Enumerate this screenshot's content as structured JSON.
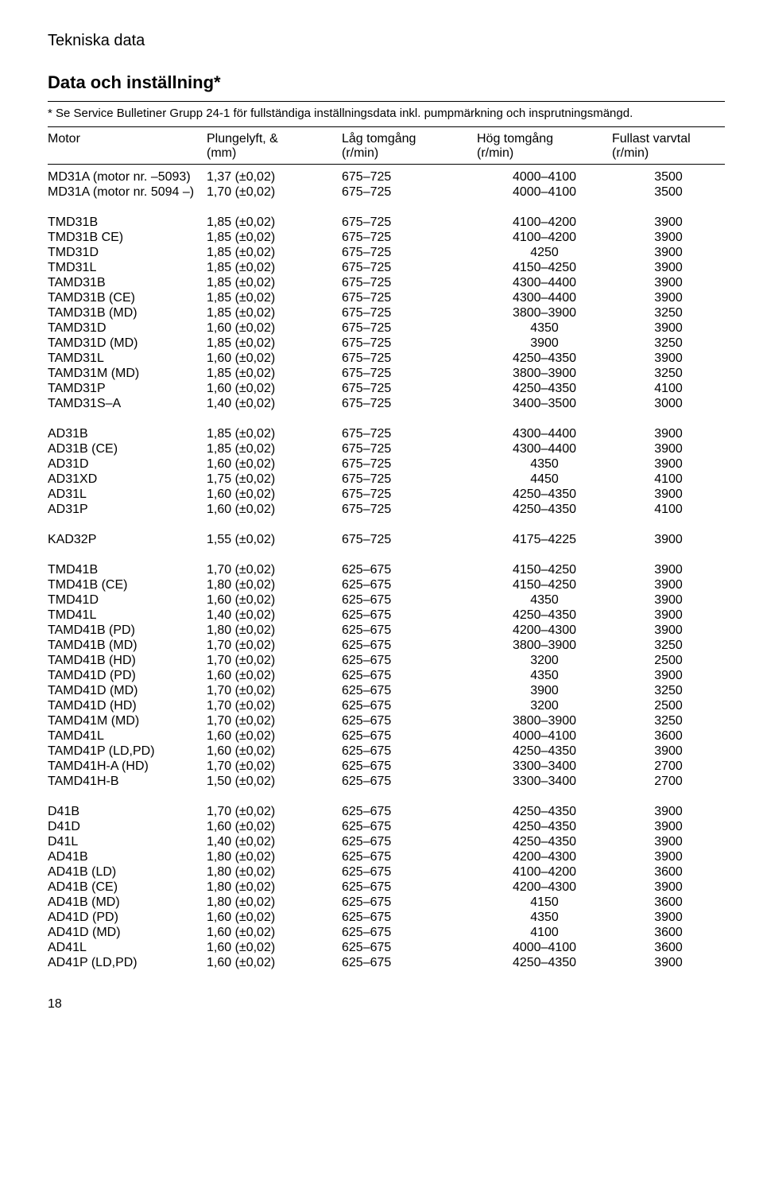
{
  "header": "Tekniska data",
  "title": "Data och inställning*",
  "footnote": "* Se Service Bulletiner Grupp 24-1 för fullständiga inställningsdata inkl. pumpmärkning och insprutningsmängd.",
  "columns": {
    "motor": "Motor",
    "plunge": "Plungelyft, &",
    "plunge_unit": "(mm)",
    "low": "Låg tomgång",
    "low_unit": "(r/min)",
    "high": "Hög tomgång",
    "high_unit": "(r/min)",
    "full": "Fullast varvtal",
    "full_unit": "(r/min)"
  },
  "groups": [
    [
      [
        "MD31A (motor nr. –5093)",
        "1,37 (±0,02)",
        "675–725",
        "4000–4100",
        "3500"
      ],
      [
        "MD31A (motor nr. 5094 –)",
        "1,70 (±0,02)",
        "675–725",
        "4000–4100",
        "3500"
      ]
    ],
    [
      [
        "TMD31B",
        "1,85 (±0,02)",
        "675–725",
        "4100–4200",
        "3900"
      ],
      [
        "TMD31B CE)",
        "1,85 (±0,02)",
        "675–725",
        "4100–4200",
        "3900"
      ],
      [
        "TMD31D",
        "1,85 (±0,02)",
        "675–725",
        "4250",
        "3900"
      ],
      [
        "TMD31L",
        "1,85 (±0,02)",
        "675–725",
        "4150–4250",
        "3900"
      ],
      [
        "TAMD31B",
        "1,85 (±0,02)",
        "675–725",
        "4300–4400",
        "3900"
      ],
      [
        "TAMD31B (CE)",
        "1,85 (±0,02)",
        "675–725",
        "4300–4400",
        "3900"
      ],
      [
        "TAMD31B (MD)",
        "1,85 (±0,02)",
        "675–725",
        "3800–3900",
        "3250"
      ],
      [
        "TAMD31D",
        "1,60 (±0,02)",
        "675–725",
        "4350",
        "3900"
      ],
      [
        "TAMD31D (MD)",
        "1,85 (±0,02)",
        "675–725",
        "3900",
        "3250"
      ],
      [
        "TAMD31L",
        "1,60 (±0,02)",
        "675–725",
        "4250–4350",
        "3900"
      ],
      [
        "TAMD31M (MD)",
        "1,85 (±0,02)",
        "675–725",
        "3800–3900",
        "3250"
      ],
      [
        "TAMD31P",
        "1,60 (±0,02)",
        "675–725",
        "4250–4350",
        "4100"
      ],
      [
        "TAMD31S–A",
        "1,40 (±0,02)",
        "675–725",
        "3400–3500",
        "3000"
      ]
    ],
    [
      [
        "AD31B",
        "1,85 (±0,02)",
        "675–725",
        "4300–4400",
        "3900"
      ],
      [
        "AD31B (CE)",
        "1,85 (±0,02)",
        "675–725",
        "4300–4400",
        "3900"
      ],
      [
        "AD31D",
        "1,60 (±0,02)",
        "675–725",
        "4350",
        "3900"
      ],
      [
        "AD31XD",
        "1,75 (±0,02)",
        "675–725",
        "4450",
        "4100"
      ],
      [
        "AD31L",
        "1,60 (±0,02)",
        "675–725",
        "4250–4350",
        "3900"
      ],
      [
        "AD31P",
        "1,60 (±0,02)",
        "675–725",
        "4250–4350",
        "4100"
      ]
    ],
    [
      [
        "KAD32P",
        "1,55 (±0,02)",
        "675–725",
        "4175–4225",
        "3900"
      ]
    ],
    [
      [
        "TMD41B",
        "1,70 (±0,02)",
        "625–675",
        "4150–4250",
        "3900"
      ],
      [
        "TMD41B (CE)",
        "1,80 (±0,02)",
        "625–675",
        "4150–4250",
        "3900"
      ],
      [
        "TMD41D",
        "1,60 (±0,02)",
        "625–675",
        "4350",
        "3900"
      ],
      [
        "TMD41L",
        "1,40 (±0,02)",
        "625–675",
        "4250–4350",
        "3900"
      ],
      [
        "TAMD41B (PD)",
        "1,80 (±0,02)",
        "625–675",
        "4200–4300",
        "3900"
      ],
      [
        "TAMD41B (MD)",
        "1,70 (±0,02)",
        "625–675",
        "3800–3900",
        "3250"
      ],
      [
        "TAMD41B (HD)",
        "1,70 (±0,02)",
        "625–675",
        "3200",
        "2500"
      ],
      [
        "TAMD41D (PD)",
        "1,60 (±0,02)",
        "625–675",
        "4350",
        "3900"
      ],
      [
        "TAMD41D (MD)",
        "1,70 (±0,02)",
        "625–675",
        "3900",
        "3250"
      ],
      [
        "TAMD41D (HD)",
        "1,70 (±0,02)",
        "625–675",
        "3200",
        "2500"
      ],
      [
        "TAMD41M (MD)",
        "1,70 (±0,02)",
        "625–675",
        "3800–3900",
        "3250"
      ],
      [
        "TAMD41L",
        "1,60 (±0,02)",
        "625–675",
        "4000–4100",
        "3600"
      ],
      [
        "TAMD41P (LD,PD)",
        "1,60 (±0,02)",
        "625–675",
        "4250–4350",
        "3900"
      ],
      [
        "TAMD41H-A (HD)",
        "1,70 (±0,02)",
        "625–675",
        "3300–3400",
        "2700"
      ],
      [
        "TAMD41H-B",
        "1,50 (±0,02)",
        "625–675",
        "3300–3400",
        "2700"
      ]
    ],
    [
      [
        "D41B",
        "1,70 (±0,02)",
        "625–675",
        "4250–4350",
        "3900"
      ],
      [
        "D41D",
        "1,60 (±0,02)",
        "625–675",
        "4250–4350",
        "3900"
      ],
      [
        "D41L",
        "1,40 (±0,02)",
        "625–675",
        "4250–4350",
        "3900"
      ],
      [
        "AD41B",
        "1,80 (±0,02)",
        "625–675",
        "4200–4300",
        "3900"
      ],
      [
        "AD41B (LD)",
        "1,80 (±0,02)",
        "625–675",
        "4100–4200",
        "3600"
      ],
      [
        "AD41B (CE)",
        "1,80 (±0,02)",
        "625–675",
        "4200–4300",
        "3900"
      ],
      [
        "AD41B (MD)",
        "1,80 (±0,02)",
        "625–675",
        "4150",
        "3600"
      ],
      [
        "AD41D (PD)",
        "1,60 (±0,02)",
        "625–675",
        "4350",
        "3900"
      ],
      [
        "AD41D (MD)",
        "1,60 (±0,02)",
        "625–675",
        "4100",
        "3600"
      ],
      [
        "AD41L",
        "1,60 (±0,02)",
        "625–675",
        "4000–4100",
        "3600"
      ],
      [
        "AD41P (LD,PD)",
        "1,60 (±0,02)",
        "625–675",
        "4250–4350",
        "3900"
      ]
    ]
  ],
  "page_number": "18"
}
